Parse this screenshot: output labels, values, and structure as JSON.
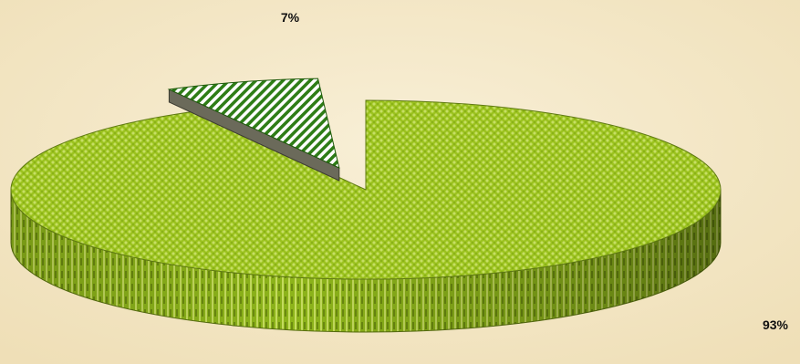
{
  "chart_data": {
    "type": "pie",
    "style": "3d-exploded",
    "slices": [
      {
        "label": "93%",
        "value": 93,
        "color": "#9bc21e",
        "pattern": "dotted"
      },
      {
        "label": "7%",
        "value": 7,
        "color": "#2e7d16",
        "pattern": "diagonal-stripes",
        "exploded": true
      }
    ],
    "background_color": "#f4e9c9"
  }
}
